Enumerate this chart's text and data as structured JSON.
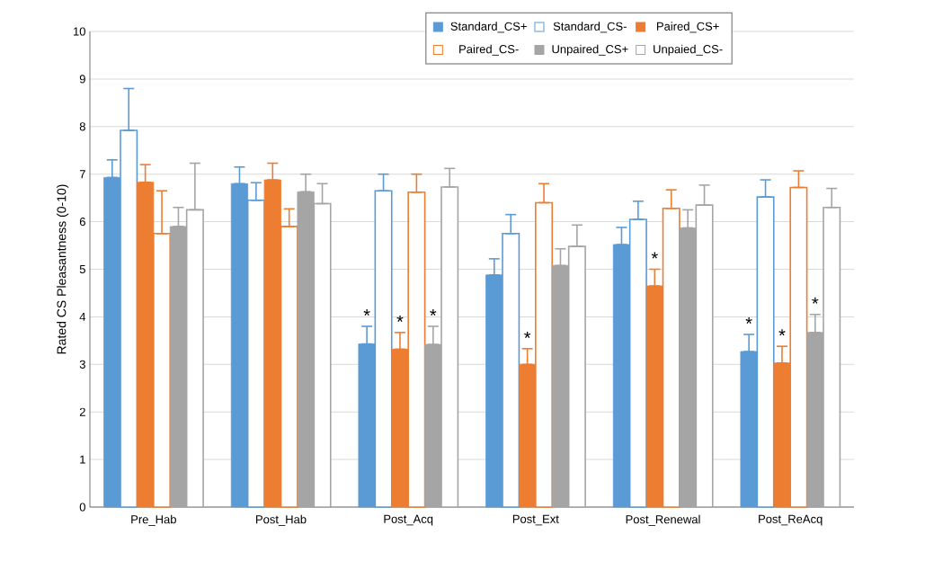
{
  "chart_data": {
    "type": "bar",
    "ylabel": "Rated CS Pleasantness (0-10)",
    "categories": [
      "Pre_Hab",
      "Post_Hab",
      "Post_Acq",
      "Post_Ext",
      "Post_Renewal",
      "Post_ReAcq"
    ],
    "ylim": [
      0,
      10
    ],
    "yticks": [
      0,
      1,
      2,
      3,
      4,
      5,
      6,
      7,
      8,
      9,
      10
    ],
    "grid": "y",
    "legend": "top",
    "series": [
      {
        "name": "Standard_CS+",
        "color": "#5b9bd5",
        "values": [
          6.93,
          6.8,
          3.43,
          4.88,
          5.52,
          3.27
        ],
        "value_labels": [
          null,
          null,
          "*",
          null,
          null,
          "*"
        ],
        "errors": [
          [
            6.93,
            7.3
          ],
          [
            6.8,
            7.15
          ],
          [
            3.43,
            3.8
          ],
          [
            4.88,
            5.22
          ],
          [
            5.52,
            5.88
          ],
          [
            3.27,
            3.63
          ]
        ]
      },
      {
        "name": "Standard_CS-",
        "color": "#5b9bd5",
        "values": [
          7.92,
          6.45,
          6.65,
          5.75,
          6.05,
          6.52
        ],
        "errors": [
          [
            7.92,
            8.8
          ],
          [
            6.45,
            6.82
          ],
          [
            6.65,
            7.0
          ],
          [
            5.75,
            6.15
          ],
          [
            6.05,
            6.43
          ],
          [
            6.52,
            6.88
          ]
        ]
      },
      {
        "name": "Paired_CS+",
        "color": "#ed7d31",
        "values": [
          6.83,
          6.88,
          3.32,
          3.0,
          4.65,
          3.03
        ],
        "value_labels": [
          null,
          null,
          "*",
          "*",
          "*",
          "*"
        ],
        "errors": [
          [
            6.83,
            7.2
          ],
          [
            6.88,
            7.23
          ],
          [
            3.32,
            3.67
          ],
          [
            3.0,
            3.33
          ],
          [
            4.65,
            5.0
          ],
          [
            3.03,
            3.38
          ]
        ]
      },
      {
        "name": "Paired_CS-",
        "color": "#ed7d31",
        "values": [
          5.75,
          5.9,
          6.62,
          6.4,
          6.28,
          6.72
        ],
        "errors": [
          [
            5.75,
            6.65
          ],
          [
            5.9,
            6.27
          ],
          [
            6.62,
            7.0
          ],
          [
            6.4,
            6.8
          ],
          [
            6.28,
            6.67
          ],
          [
            6.72,
            7.07
          ]
        ]
      },
      {
        "name": "Unpaired_CS+",
        "color": "#a5a5a5",
        "values": [
          5.9,
          6.63,
          3.42,
          5.08,
          5.87,
          3.67
        ],
        "value_labels": [
          null,
          null,
          "*",
          null,
          null,
          "*"
        ],
        "errors": [
          [
            5.9,
            6.3
          ],
          [
            6.63,
            7.0
          ],
          [
            3.42,
            3.8
          ],
          [
            5.08,
            5.43
          ],
          [
            5.87,
            6.25
          ],
          [
            3.67,
            4.05
          ]
        ]
      },
      {
        "name": "Unpaied_CS-",
        "color": "#a5a5a5",
        "values": [
          6.25,
          6.38,
          6.73,
          5.48,
          6.35,
          6.3
        ],
        "errors": [
          [
            6.25,
            7.23
          ],
          [
            6.38,
            6.8
          ],
          [
            6.73,
            7.12
          ],
          [
            5.48,
            5.93
          ],
          [
            6.35,
            6.77
          ],
          [
            6.3,
            6.7
          ]
        ]
      }
    ]
  }
}
